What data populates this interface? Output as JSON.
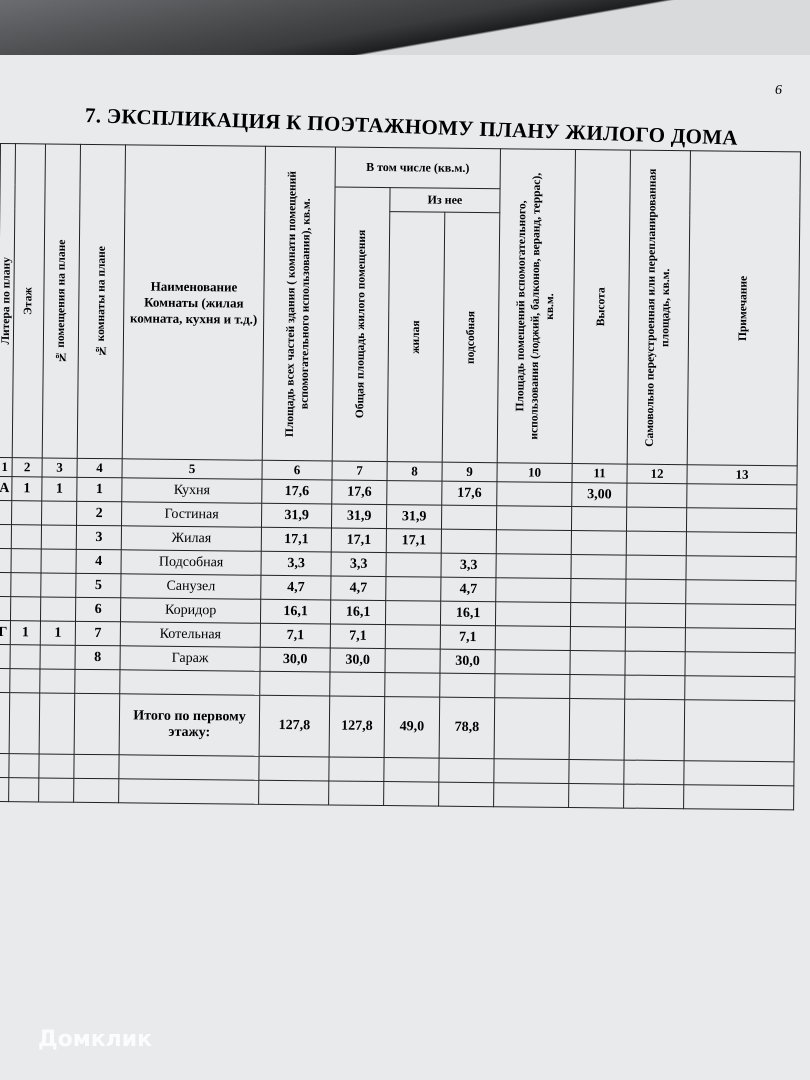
{
  "page_number": "6",
  "title": "7. ЭКСПЛИКАЦИЯ К ПОЭТАЖНОМУ ПЛАНУ ЖИЛОГО ДОМА",
  "group_header": "В том числе (кв.м.)",
  "sub_group_header": "Из нее",
  "columns": [
    "Литера по плану",
    "Этаж",
    "№ помещения на плане",
    "№ комнаты на плане",
    "Наименование Комнаты (жилая комната, кухня и т.д.)",
    "Площадь всех частей здания ( комнати помещений вспомогательного использования), кв.м.",
    "Общая площадь жилого помещения",
    "жилая",
    "подсобная",
    "Площадь помещений вспомогательного, использования (лоджий, балконов, веранд, террас), кв.м.",
    "Высота",
    "Самовольно переустроенная или перепланированная площадь, кв.м.",
    "Примечание"
  ],
  "column_numbers": [
    "1",
    "2",
    "3",
    "4",
    "5",
    "6",
    "7",
    "8",
    "9",
    "10",
    "11",
    "12",
    "13"
  ],
  "rows": [
    [
      "А",
      "1",
      "1",
      "1",
      "Кухня",
      "17,6",
      "17,6",
      null,
      "17,6",
      null,
      "3,00",
      null,
      null
    ],
    [
      null,
      null,
      null,
      "2",
      "Гостиная",
      "31,9",
      "31,9",
      "31,9",
      null,
      null,
      null,
      null,
      null
    ],
    [
      null,
      null,
      null,
      "3",
      "Жилая",
      "17,1",
      "17,1",
      "17,1",
      null,
      null,
      null,
      null,
      null
    ],
    [
      null,
      null,
      null,
      "4",
      "Подсобная",
      "3,3",
      "3,3",
      null,
      "3,3",
      null,
      null,
      null,
      null
    ],
    [
      null,
      null,
      null,
      "5",
      "Санузел",
      "4,7",
      "4,7",
      null,
      "4,7",
      null,
      null,
      null,
      null
    ],
    [
      null,
      null,
      null,
      "6",
      "Коридор",
      "16,1",
      "16,1",
      null,
      "16,1",
      null,
      null,
      null,
      null
    ],
    [
      "Г",
      "1",
      "1",
      "7",
      "Котельная",
      "7,1",
      "7,1",
      null,
      "7,1",
      null,
      null,
      null,
      null
    ],
    [
      null,
      null,
      null,
      "8",
      "Гараж",
      "30,0",
      "30,0",
      null,
      "30,0",
      null,
      null,
      null,
      null
    ],
    [
      null,
      null,
      null,
      null,
      null,
      null,
      null,
      null,
      null,
      null,
      null,
      null,
      null
    ],
    [
      null,
      null,
      null,
      null,
      "Итого по первому этажу:",
      "127,8",
      "127,8",
      "49,0",
      "78,8",
      null,
      null,
      null,
      null
    ],
    [
      null,
      null,
      null,
      null,
      null,
      null,
      null,
      null,
      null,
      null,
      null,
      null,
      null
    ],
    [
      null,
      null,
      null,
      null,
      null,
      null,
      null,
      null,
      null,
      null,
      null,
      null,
      null
    ]
  ],
  "watermark": "Домклик"
}
